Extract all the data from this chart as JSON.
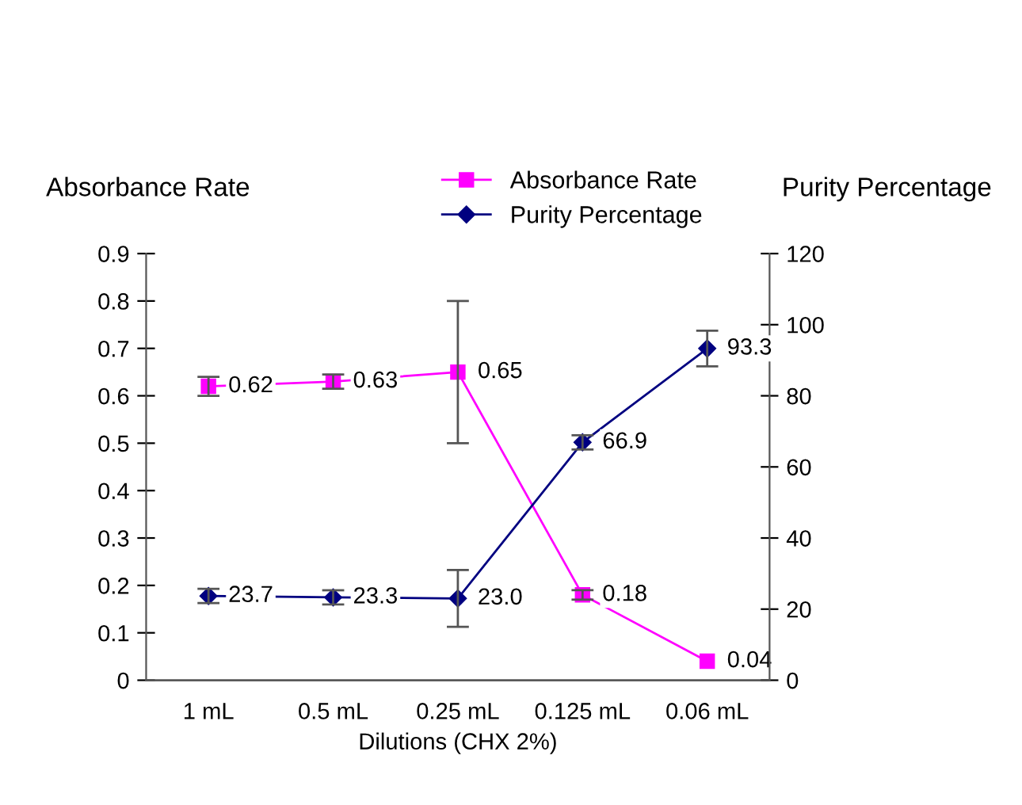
{
  "chart_data": {
    "type": "line",
    "xlabel": "Dilutions (CHX 2%)",
    "ylabel": "Absorbance Rate",
    "y2label": "Purity Percentage",
    "categories": [
      "1 mL",
      "0.5 mL",
      "0.25 mL",
      "0.125 mL",
      "0.06 mL"
    ],
    "series": [
      {
        "name": "Absorbance Rate",
        "color": "#ff00ff",
        "marker": "square",
        "values": [
          0.62,
          0.63,
          0.65,
          0.18,
          0.04
        ],
        "errors": [
          0.02,
          0.015,
          0.15,
          0.01,
          null
        ],
        "value_labels": [
          "0.62",
          "0.63",
          "0.65",
          "0.18",
          "0.04"
        ]
      },
      {
        "name": "Purity Percentage",
        "color": "#000080",
        "marker": "diamond",
        "axis": "y2",
        "values": [
          23.7,
          23.3,
          23.0,
          66.9,
          93.3
        ],
        "errors": [
          2,
          2,
          8,
          2,
          5
        ],
        "value_labels": [
          "23.7",
          "23.3",
          "23.0",
          "66.9",
          "93.3"
        ]
      }
    ],
    "ylim": [
      0,
      0.9
    ],
    "yticks": [
      {
        "value": 0,
        "label": "0"
      },
      0.1,
      0.2,
      0.3,
      0.4,
      0.5,
      0.6,
      0.7,
      0.8,
      0.9
    ],
    "y2lim": [
      0,
      120
    ],
    "y2ticks": [
      0,
      20,
      40,
      60,
      80,
      100,
      120
    ],
    "legend": "top",
    "grid": false,
    "line_style": "solid"
  }
}
